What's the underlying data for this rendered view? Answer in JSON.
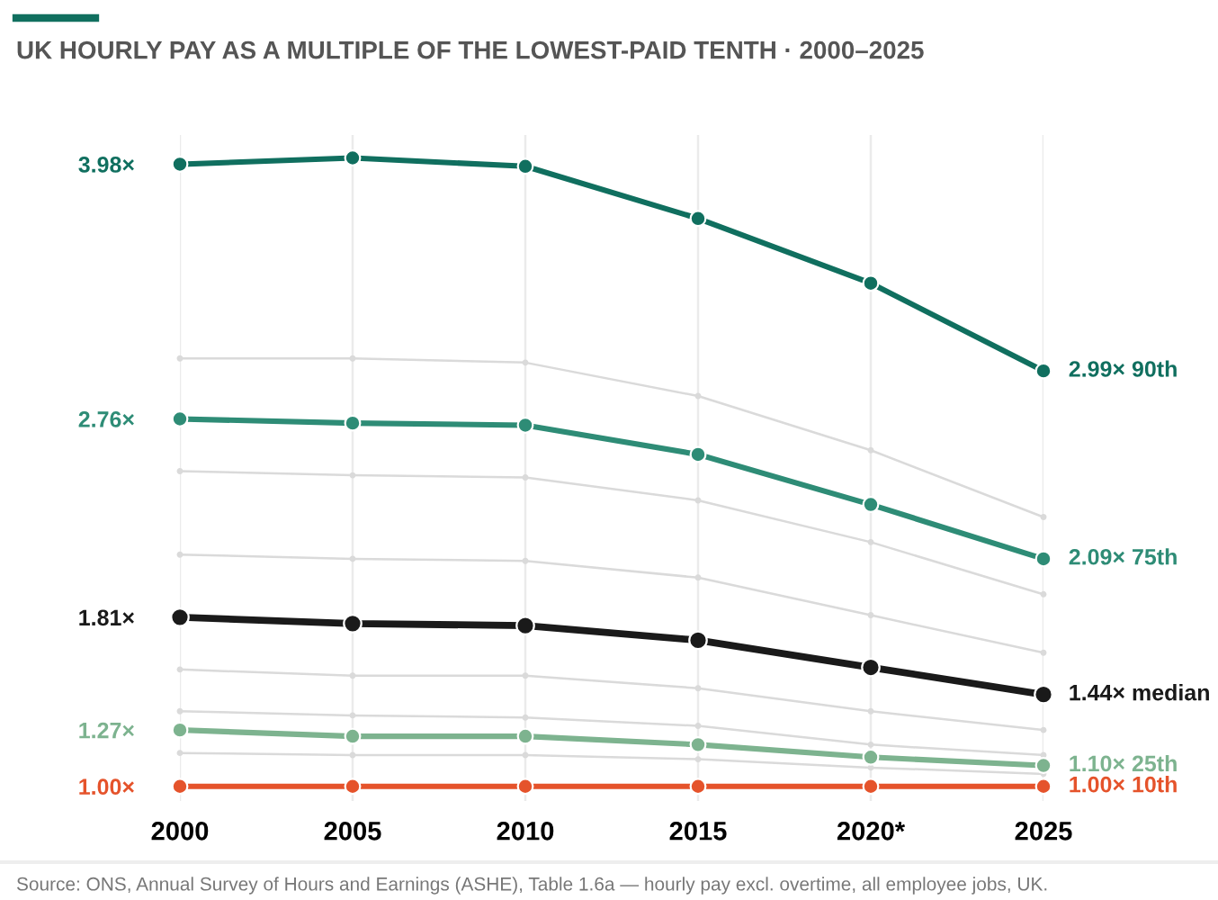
{
  "chart_data": {
    "type": "line",
    "title": "UK HOURLY PAY AS A MULTIPLE OF THE LOWEST-PAID TENTH · 2000–2025",
    "categories": [
      "2000",
      "2005",
      "2010",
      "2015",
      "2020*",
      "2025"
    ],
    "ylim": [
      0.93,
      4.12
    ],
    "yticks": [
      {
        "value": 1.0,
        "label": "1.00×"
      },
      {
        "value": 1.27,
        "label": "1.27×"
      },
      {
        "value": 1.81,
        "label": "1.81×"
      },
      {
        "value": 2.76,
        "label": "2.76×"
      },
      {
        "value": 3.98,
        "label": "3.98×"
      }
    ],
    "grid": "x",
    "legend": false,
    "marker": "circle",
    "line_style": "solid",
    "series": [
      {
        "color": "#dadada",
        "values": [
          3.05,
          3.05,
          3.03,
          2.87,
          2.61,
          2.29
        ]
      },
      {
        "color": "#dadada",
        "values": [
          2.51,
          2.49,
          2.48,
          2.37,
          2.17,
          1.92
        ]
      },
      {
        "color": "#dadada",
        "values": [
          2.11,
          2.09,
          2.08,
          2.0,
          1.82,
          1.64
        ]
      },
      {
        "color": "#dadada",
        "values": [
          1.56,
          1.53,
          1.53,
          1.47,
          1.36,
          1.27
        ]
      },
      {
        "color": "#dadada",
        "values": [
          1.36,
          1.34,
          1.33,
          1.29,
          1.2,
          1.15
        ]
      },
      {
        "color": "#dadada",
        "values": [
          1.16,
          1.15,
          1.15,
          1.13,
          1.09,
          1.06
        ]
      },
      {
        "name": "90th",
        "color": "#106f5f",
        "values": [
          3.98,
          4.01,
          3.97,
          3.72,
          3.41,
          2.99
        ],
        "value_labels": [
          null,
          null,
          null,
          null,
          null,
          "2.99×"
        ]
      },
      {
        "name": "75th",
        "color": "#2e8c76",
        "values": [
          2.76,
          2.74,
          2.73,
          2.59,
          2.35,
          2.09
        ],
        "value_labels": [
          null,
          null,
          null,
          null,
          null,
          "2.09×"
        ]
      },
      {
        "name": "median",
        "color": "#1a1a1a",
        "values": [
          1.81,
          1.78,
          1.77,
          1.7,
          1.57,
          1.44
        ],
        "value_labels": [
          null,
          null,
          null,
          null,
          null,
          "1.44×"
        ]
      },
      {
        "name": "25th",
        "color": "#7db38f",
        "values": [
          1.27,
          1.24,
          1.24,
          1.2,
          1.14,
          1.1
        ],
        "value_labels": [
          null,
          null,
          null,
          null,
          null,
          "1.10×"
        ]
      },
      {
        "name": "10th",
        "color": "#e5532b",
        "values": [
          1.0,
          1.0,
          1.0,
          1.0,
          1.0,
          1.0
        ],
        "value_labels": [
          null,
          null,
          null,
          null,
          null,
          "1.00×"
        ]
      }
    ],
    "annotations": [
      "Source: ONS, Annual Survey of Hours and Earnings (ASHE), Table 1.6a — hourly pay excl. overtime, all employee jobs, UK."
    ]
  }
}
